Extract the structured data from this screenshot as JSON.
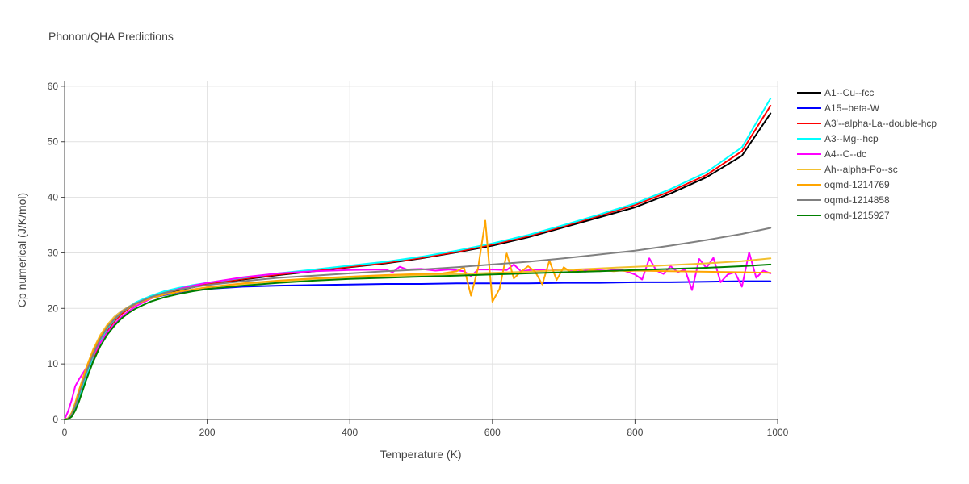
{
  "chart_data": {
    "type": "line",
    "title": "Phonon/QHA Predictions",
    "xlabel": "Temperature (K)",
    "ylabel": "Cp numerical (J/K/mol)",
    "xlim": [
      0,
      1000
    ],
    "ylim": [
      0,
      61
    ],
    "xticks": [
      0,
      200,
      400,
      600,
      800,
      1000
    ],
    "yticks": [
      0,
      10,
      20,
      30,
      40,
      50,
      60
    ],
    "grid": true,
    "legend_position": "right",
    "series": [
      {
        "name": "A1--Cu--fcc",
        "color": "#000000",
        "x": [
          0,
          5,
          10,
          15,
          20,
          30,
          40,
          50,
          60,
          70,
          80,
          90,
          100,
          120,
          140,
          160,
          180,
          200,
          250,
          300,
          350,
          400,
          450,
          500,
          550,
          600,
          650,
          700,
          750,
          800,
          850,
          900,
          950,
          990
        ],
        "y": [
          0,
          0.1,
          0.8,
          2.2,
          4,
          8,
          11.5,
          14.2,
          16.3,
          17.8,
          19,
          20,
          20.8,
          21.9,
          22.7,
          23.3,
          23.8,
          24.3,
          25.2,
          26,
          26.7,
          27.4,
          28.1,
          29,
          30.1,
          31.3,
          32.8,
          34.6,
          36.4,
          38.2,
          40.7,
          43.6,
          47.5,
          55.1
        ]
      },
      {
        "name": "A15--beta-W",
        "color": "#0000ff",
        "x": [
          0,
          5,
          10,
          15,
          20,
          30,
          40,
          50,
          60,
          70,
          80,
          90,
          100,
          120,
          140,
          160,
          180,
          200,
          250,
          300,
          350,
          400,
          450,
          500,
          550,
          600,
          650,
          700,
          750,
          800,
          850,
          900,
          950,
          990
        ],
        "y": [
          0,
          0.2,
          1,
          2.5,
          4.5,
          8.6,
          12.2,
          15,
          17,
          18.5,
          19.5,
          20.3,
          20.9,
          21.8,
          22.4,
          22.9,
          23.2,
          23.5,
          23.9,
          24.1,
          24.2,
          24.3,
          24.4,
          24.4,
          24.5,
          24.5,
          24.5,
          24.6,
          24.6,
          24.7,
          24.7,
          24.8,
          24.9,
          24.9
        ]
      },
      {
        "name": "A3'--alpha-La--double-hcp",
        "color": "#ff0000",
        "x": [
          0,
          5,
          10,
          15,
          20,
          30,
          40,
          50,
          60,
          70,
          80,
          90,
          100,
          120,
          140,
          160,
          180,
          200,
          250,
          300,
          350,
          400,
          450,
          500,
          550,
          600,
          650,
          700,
          750,
          800,
          850,
          900,
          950,
          990
        ],
        "y": [
          0,
          0.1,
          0.7,
          2,
          3.7,
          7.6,
          11,
          13.9,
          16.1,
          17.7,
          19,
          20,
          20.8,
          21.9,
          22.8,
          23.4,
          23.9,
          24.4,
          25.3,
          26.1,
          26.8,
          27.5,
          28.2,
          29.1,
          30.2,
          31.5,
          33,
          34.8,
          36.7,
          38.6,
          41.1,
          44,
          48.3,
          56.5
        ]
      },
      {
        "name": "A3--Mg--hcp",
        "color": "#00ffff",
        "x": [
          0,
          5,
          10,
          15,
          20,
          30,
          40,
          50,
          60,
          70,
          80,
          90,
          100,
          120,
          140,
          160,
          180,
          200,
          250,
          300,
          350,
          400,
          450,
          500,
          550,
          600,
          650,
          700,
          750,
          800,
          850,
          900,
          950,
          990
        ],
        "y": [
          0,
          0.1,
          0.7,
          2,
          3.8,
          7.8,
          11.3,
          14.2,
          16.4,
          18,
          19.3,
          20.3,
          21.1,
          22.2,
          23.1,
          23.7,
          24.2,
          24.6,
          25.5,
          26.3,
          27,
          27.7,
          28.4,
          29.3,
          30.4,
          31.7,
          33.2,
          35,
          36.9,
          38.9,
          41.5,
          44.5,
          49,
          57.8
        ]
      },
      {
        "name": "A4--C--dc",
        "color": "#ff00ff",
        "x": [
          0,
          5,
          10,
          15,
          20,
          30,
          40,
          50,
          60,
          70,
          80,
          90,
          100,
          120,
          140,
          160,
          180,
          200,
          250,
          300,
          350,
          400,
          450,
          460,
          470,
          480,
          500,
          520,
          540,
          560,
          570,
          580,
          600,
          620,
          630,
          640,
          660,
          680,
          700,
          720,
          740,
          760,
          780,
          800,
          810,
          820,
          830,
          840,
          850,
          860,
          870,
          880,
          890,
          900,
          910,
          920,
          930,
          940,
          950,
          960,
          970,
          980,
          990
        ],
        "y": [
          0,
          1.5,
          3.5,
          6,
          7.2,
          9.2,
          11.5,
          13.8,
          15.7,
          17.2,
          18.5,
          19.5,
          20.4,
          21.7,
          22.7,
          23.5,
          24.1,
          24.6,
          25.6,
          26.3,
          26.7,
          26.9,
          27,
          26.5,
          27.5,
          27,
          27.1,
          26.8,
          27,
          26.7,
          25.8,
          27,
          27,
          26.9,
          27.9,
          26.7,
          27,
          26.8,
          27,
          26.7,
          26.9,
          26.8,
          27,
          26.1,
          25.2,
          29,
          26.8,
          26.2,
          27.6,
          26.5,
          27,
          23.3,
          28.9,
          27.3,
          29.1,
          24.7,
          26.1,
          26.5,
          23.9,
          30.1,
          25.5,
          26.8,
          26.3
        ]
      },
      {
        "name": "Ah--alpha-Po--sc",
        "color": "#f2c02e",
        "x": [
          0,
          5,
          10,
          15,
          20,
          30,
          40,
          50,
          60,
          70,
          80,
          90,
          100,
          120,
          140,
          160,
          180,
          200,
          250,
          300,
          350,
          400,
          450,
          500,
          550,
          600,
          650,
          700,
          750,
          800,
          850,
          900,
          950,
          990
        ],
        "y": [
          0,
          0.2,
          1.1,
          2.8,
          5,
          9.2,
          12.6,
          15.2,
          17.1,
          18.5,
          19.5,
          20.3,
          20.9,
          21.8,
          22.5,
          23,
          23.4,
          23.8,
          24.4,
          24.9,
          25.3,
          25.6,
          25.8,
          26,
          26.2,
          26.4,
          26.6,
          26.9,
          27.2,
          27.5,
          27.8,
          28.1,
          28.5,
          29
        ]
      },
      {
        "name": "oqmd-1214769",
        "color": "#ffa500",
        "x": [
          0,
          5,
          10,
          15,
          20,
          30,
          40,
          50,
          60,
          70,
          80,
          90,
          100,
          120,
          140,
          160,
          180,
          200,
          250,
          300,
          350,
          400,
          450,
          500,
          530,
          550,
          560,
          570,
          580,
          590,
          600,
          610,
          620,
          630,
          640,
          650,
          660,
          670,
          680,
          690,
          700,
          710,
          720,
          730,
          740,
          750,
          760,
          770,
          780,
          790,
          800,
          850,
          900,
          950,
          990
        ],
        "y": [
          0,
          0.2,
          1.2,
          3,
          5.2,
          9.2,
          12.4,
          14.9,
          16.8,
          18.2,
          19.3,
          20.1,
          20.8,
          21.8,
          22.5,
          23,
          23.4,
          23.8,
          24.5,
          25,
          25.4,
          25.7,
          26,
          26.2,
          26.3,
          26.7,
          27.4,
          22.3,
          27.3,
          35.8,
          21.2,
          23.5,
          29.9,
          25.4,
          26.6,
          27.6,
          26.6,
          24.3,
          28.6,
          25.1,
          27.4,
          26.5,
          27,
          26.6,
          26.9,
          26.7,
          26.8,
          26.7,
          26.8,
          26.7,
          26.8,
          26.7,
          26.6,
          26.5,
          26.4
        ]
      },
      {
        "name": "oqmd-1214858",
        "color": "#808080",
        "x": [
          0,
          5,
          10,
          15,
          20,
          30,
          40,
          50,
          60,
          70,
          80,
          90,
          100,
          120,
          140,
          160,
          180,
          200,
          250,
          300,
          350,
          400,
          450,
          500,
          550,
          600,
          650,
          700,
          750,
          800,
          850,
          900,
          950,
          990
        ],
        "y": [
          0,
          0.1,
          0.9,
          2.4,
          4.4,
          8.3,
          11.7,
          14.5,
          16.6,
          18.1,
          19.3,
          20.2,
          20.9,
          22,
          22.8,
          23.4,
          23.8,
          24.2,
          24.9,
          25.5,
          25.9,
          26.3,
          26.7,
          27,
          27.4,
          27.9,
          28.4,
          29,
          29.7,
          30.4,
          31.3,
          32.3,
          33.4,
          34.5
        ]
      },
      {
        "name": "oqmd-1215927",
        "color": "#008000",
        "x": [
          0,
          5,
          10,
          15,
          20,
          30,
          40,
          50,
          60,
          70,
          80,
          90,
          100,
          120,
          140,
          160,
          180,
          200,
          250,
          300,
          350,
          400,
          450,
          500,
          550,
          600,
          650,
          700,
          750,
          800,
          850,
          900,
          950,
          990
        ],
        "y": [
          0,
          0.05,
          0.5,
          1.6,
          3.2,
          7,
          10.4,
          13.2,
          15.3,
          16.9,
          18.2,
          19.2,
          20,
          21.2,
          22,
          22.6,
          23.1,
          23.5,
          24.1,
          24.6,
          25,
          25.3,
          25.5,
          25.7,
          25.9,
          26.1,
          26.3,
          26.5,
          26.7,
          26.9,
          27.1,
          27.3,
          27.6,
          27.9
        ]
      }
    ]
  }
}
